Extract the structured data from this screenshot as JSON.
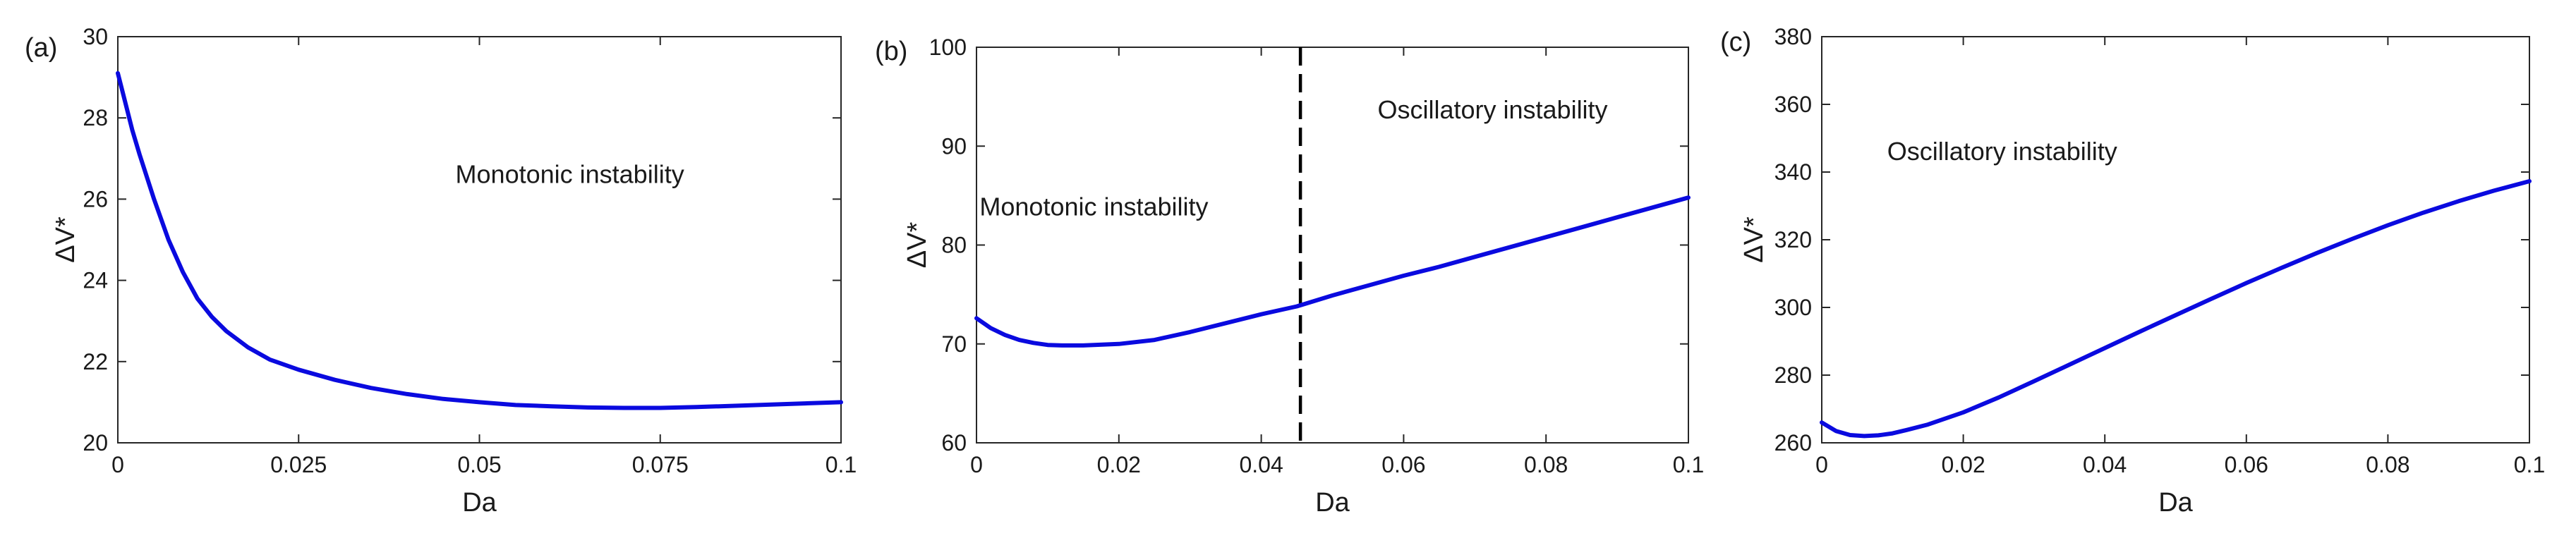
{
  "colors": {
    "curve": "#0a0adf",
    "axis": "#262626",
    "dashed_line": "#000000"
  },
  "chart_data": [
    {
      "type": "line",
      "panel_label": "(a)",
      "xlabel": "Da",
      "ylabel": "ΔV*",
      "xlim": [
        0,
        0.1
      ],
      "ylim": [
        20,
        30
      ],
      "xticks": [
        0,
        0.025,
        0.05,
        0.075,
        0.1
      ],
      "xtick_labels": [
        "0",
        "0.025",
        "0.05",
        "0.075",
        "0.1"
      ],
      "yticks": [
        20,
        22,
        24,
        26,
        28,
        30
      ],
      "ytick_labels": [
        "20",
        "22",
        "24",
        "26",
        "28",
        "30"
      ],
      "annotations": [
        {
          "text": "Monotonic instability",
          "x": 0.0625,
          "y": 26.4
        }
      ],
      "series": [
        {
          "name": "ΔV*",
          "x": [
            0,
            0.001,
            0.002,
            0.003,
            0.005,
            0.007,
            0.009,
            0.011,
            0.013,
            0.015,
            0.018,
            0.021,
            0.025,
            0.03,
            0.035,
            0.04,
            0.045,
            0.05,
            0.055,
            0.06,
            0.065,
            0.07,
            0.075,
            0.08,
            0.085,
            0.09,
            0.095,
            0.1
          ],
          "y": [
            29.1,
            28.4,
            27.7,
            27.1,
            26.0,
            25.0,
            24.2,
            23.55,
            23.1,
            22.75,
            22.35,
            22.05,
            21.8,
            21.55,
            21.35,
            21.2,
            21.08,
            21.0,
            20.93,
            20.9,
            20.87,
            20.86,
            20.86,
            20.88,
            20.91,
            20.94,
            20.97,
            21.0
          ]
        }
      ]
    },
    {
      "type": "line",
      "panel_label": "(b)",
      "xlabel": "Da",
      "ylabel": "ΔV*",
      "xlim": [
        0,
        0.1
      ],
      "ylim": [
        60,
        100
      ],
      "xticks": [
        0,
        0.02,
        0.04,
        0.06,
        0.08,
        0.1
      ],
      "xtick_labels": [
        "0",
        "0.02",
        "0.04",
        "0.06",
        "0.08",
        "0.1"
      ],
      "yticks": [
        60,
        70,
        80,
        90,
        100
      ],
      "ytick_labels": [
        "60",
        "70",
        "80",
        "90",
        "100"
      ],
      "vline_x": 0.0455,
      "annotations": [
        {
          "text": "Monotonic instability",
          "x": 0.0165,
          "y": 83
        },
        {
          "text": "Oscillatory instability",
          "x": 0.0725,
          "y": 92.8
        }
      ],
      "series": [
        {
          "name": "ΔV*",
          "x": [
            0,
            0.002,
            0.004,
            0.006,
            0.008,
            0.01,
            0.012,
            0.015,
            0.02,
            0.025,
            0.03,
            0.035,
            0.04,
            0.045,
            0.05,
            0.055,
            0.06,
            0.065,
            0.07,
            0.075,
            0.08,
            0.085,
            0.09,
            0.095,
            0.1
          ],
          "y": [
            72.6,
            71.6,
            70.9,
            70.4,
            70.1,
            69.9,
            69.85,
            69.85,
            70.0,
            70.4,
            71.2,
            72.1,
            73.0,
            73.8,
            74.9,
            75.9,
            76.9,
            77.8,
            78.8,
            79.8,
            80.8,
            81.8,
            82.8,
            83.8,
            84.8
          ]
        }
      ]
    },
    {
      "type": "line",
      "panel_label": "(c)",
      "xlabel": "Da",
      "ylabel": "ΔV*",
      "xlim": [
        0,
        0.1
      ],
      "ylim": [
        260,
        380
      ],
      "xticks": [
        0,
        0.02,
        0.04,
        0.06,
        0.08,
        0.1
      ],
      "xtick_labels": [
        "0",
        "0.02",
        "0.04",
        "0.06",
        "0.08",
        "0.1"
      ],
      "yticks": [
        260,
        280,
        300,
        320,
        340,
        360,
        380
      ],
      "ytick_labels": [
        "260",
        "280",
        "300",
        "320",
        "340",
        "360",
        "380"
      ],
      "annotations": [
        {
          "text": "Oscillatory instability",
          "x": 0.0255,
          "y": 343.5
        }
      ],
      "series": [
        {
          "name": "ΔV*",
          "x": [
            0,
            0.002,
            0.004,
            0.006,
            0.008,
            0.01,
            0.012,
            0.015,
            0.02,
            0.025,
            0.03,
            0.035,
            0.04,
            0.045,
            0.05,
            0.055,
            0.06,
            0.065,
            0.07,
            0.075,
            0.08,
            0.085,
            0.09,
            0.095,
            0.1
          ],
          "y": [
            266,
            263.5,
            262.3,
            262.0,
            262.2,
            262.8,
            263.8,
            265.4,
            269.0,
            273.4,
            278.2,
            283.1,
            288.0,
            292.9,
            297.7,
            302.5,
            307.2,
            311.7,
            316.1,
            320.3,
            324.3,
            328.0,
            331.4,
            334.5,
            337.3
          ]
        }
      ]
    }
  ]
}
